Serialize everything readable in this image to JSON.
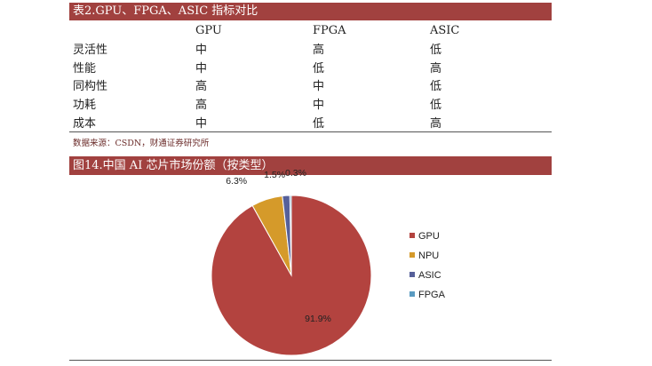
{
  "table": {
    "title": "表2.GPU、FPGA、ASIC 指标对比",
    "headers": [
      "",
      "GPU",
      "FPGA",
      "ASIC"
    ],
    "rows": [
      [
        "灵活性",
        "中",
        "高",
        "低"
      ],
      [
        "性能",
        "中",
        "低",
        "高"
      ],
      [
        "同构性",
        "高",
        "中",
        "低"
      ],
      [
        "功耗",
        "高",
        "中",
        "低"
      ],
      [
        "成本",
        "中",
        "低",
        "高"
      ]
    ],
    "source": "数据来源：CSDN，财通证券研究所"
  },
  "figure": {
    "title": "图14.中国 AI 芯片市场份额（按类型）"
  },
  "chart_data": {
    "type": "pie",
    "title": "",
    "categories": [
      "GPU",
      "NPU",
      "ASIC",
      "FPGA"
    ],
    "values": [
      91.9,
      6.3,
      1.5,
      0.3
    ],
    "labels": [
      "91.9%",
      "6.3%",
      "1.5%",
      "0.3%"
    ],
    "colors": [
      "#b3433f",
      "#d59a2a",
      "#56609a",
      "#5a9bc1"
    ],
    "legend": "right"
  },
  "colors": {
    "header_band": "#a1413f",
    "source_text": "#6a2a28"
  }
}
